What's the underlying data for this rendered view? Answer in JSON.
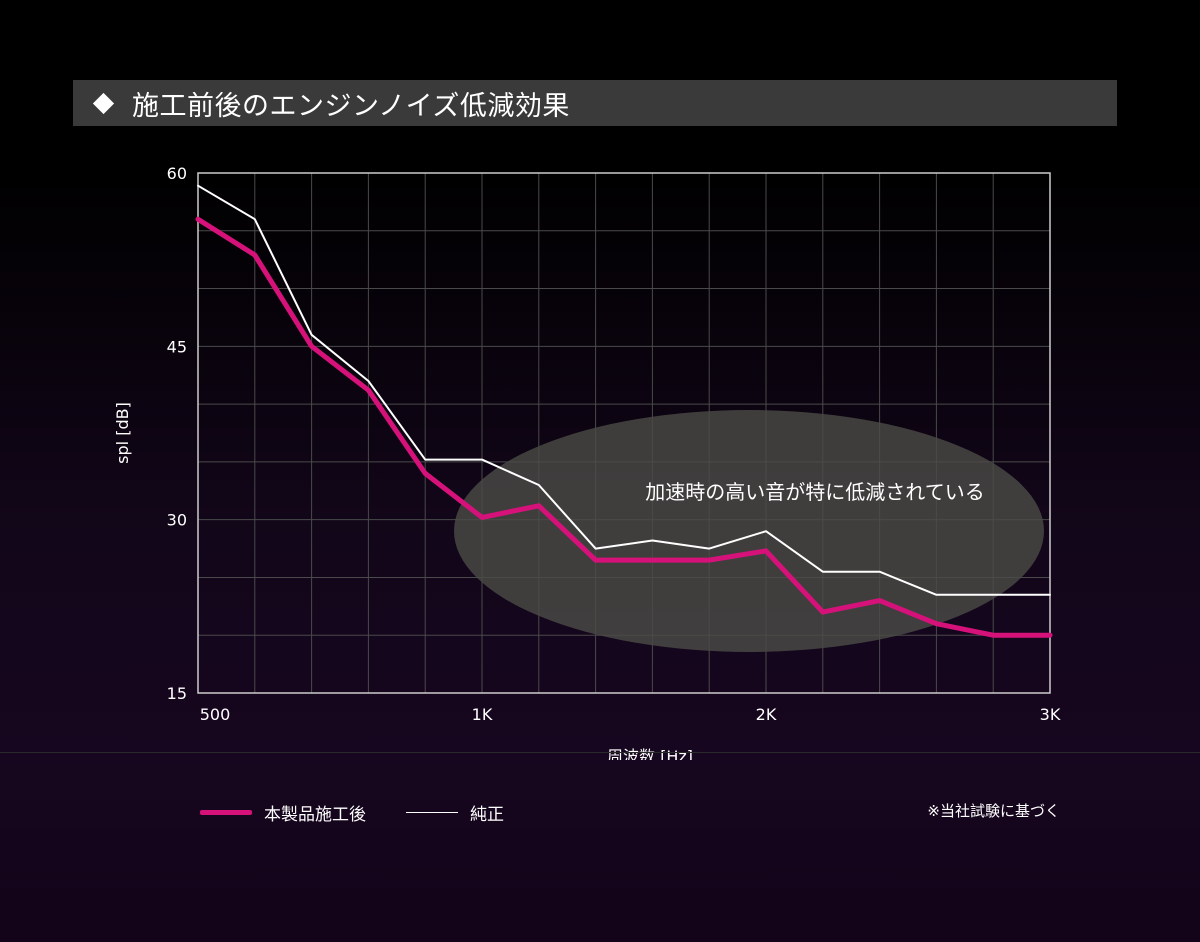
{
  "title": "施工前後のエンジンノイズ低減効果",
  "annotation": "加速時の高い音が特に低減されている",
  "footnote": "※当社試験に基づく",
  "legend": [
    {
      "label": "本製品施工後",
      "color": "#d6127a"
    },
    {
      "label": "純正",
      "color": "#ffffff"
    }
  ],
  "chart_data": {
    "type": "line",
    "xlabel": "周波数 [Hz]",
    "ylabel": "spl [dB]",
    "ylim": [
      15,
      60
    ],
    "yticks": [
      60,
      45,
      30,
      15
    ],
    "xticks": [
      {
        "label": "500",
        "value": 500
      },
      {
        "label": "1K",
        "value": 1000
      },
      {
        "label": "2K",
        "value": 2000
      },
      {
        "label": "3K",
        "value": 3000
      }
    ],
    "grid": true,
    "x": [
      500,
      600,
      700,
      800,
      900,
      1000,
      1200,
      1400,
      1600,
      1800,
      2000,
      2200,
      2400,
      2600,
      2800,
      3000
    ],
    "series": [
      {
        "name": "純正",
        "color": "#ffffff",
        "values": [
          58.9,
          56.0,
          46.0,
          42.0,
          35.2,
          35.2,
          33.0,
          27.5,
          28.2,
          27.5,
          29.0,
          25.5,
          25.5,
          23.5,
          23.5,
          23.5
        ]
      },
      {
        "name": "本製品施工後",
        "color": "#d6127a",
        "values": [
          56.0,
          52.9,
          45.0,
          41.2,
          34.0,
          30.2,
          31.2,
          26.5,
          26.5,
          26.5,
          27.3,
          22.0,
          23.0,
          21.0,
          20.0,
          20.0
        ]
      }
    ]
  }
}
